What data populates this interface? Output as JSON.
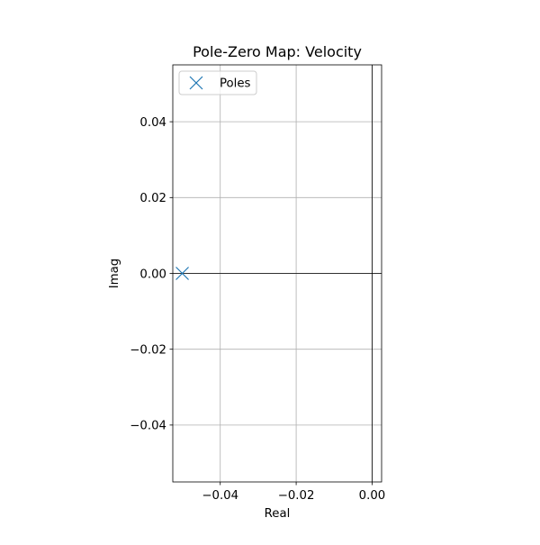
{
  "chart_data": {
    "type": "scatter",
    "title": "Pole-Zero Map: Velocity",
    "xlabel": "Real",
    "ylabel": "Imag",
    "xlim": [
      -0.0525,
      0.0025
    ],
    "ylim": [
      -0.055,
      0.055
    ],
    "xticks": [
      -0.04,
      -0.02,
      0.0
    ],
    "xtick_labels": [
      "−0.04",
      "−0.02",
      "0.00"
    ],
    "yticks": [
      -0.04,
      -0.02,
      0.0,
      0.02,
      0.04
    ],
    "ytick_labels": [
      "−0.04",
      "−0.02",
      "0.00",
      "0.02",
      "0.04"
    ],
    "grid": true,
    "reference_lines": {
      "x": 0,
      "y": 0
    },
    "series": [
      {
        "name": "Poles",
        "marker": "x",
        "color": "#1f77b4",
        "points": [
          {
            "x": -0.05,
            "y": 0.0
          }
        ]
      }
    ],
    "legend": {
      "position": "top-left",
      "entries": [
        "Poles"
      ]
    }
  }
}
